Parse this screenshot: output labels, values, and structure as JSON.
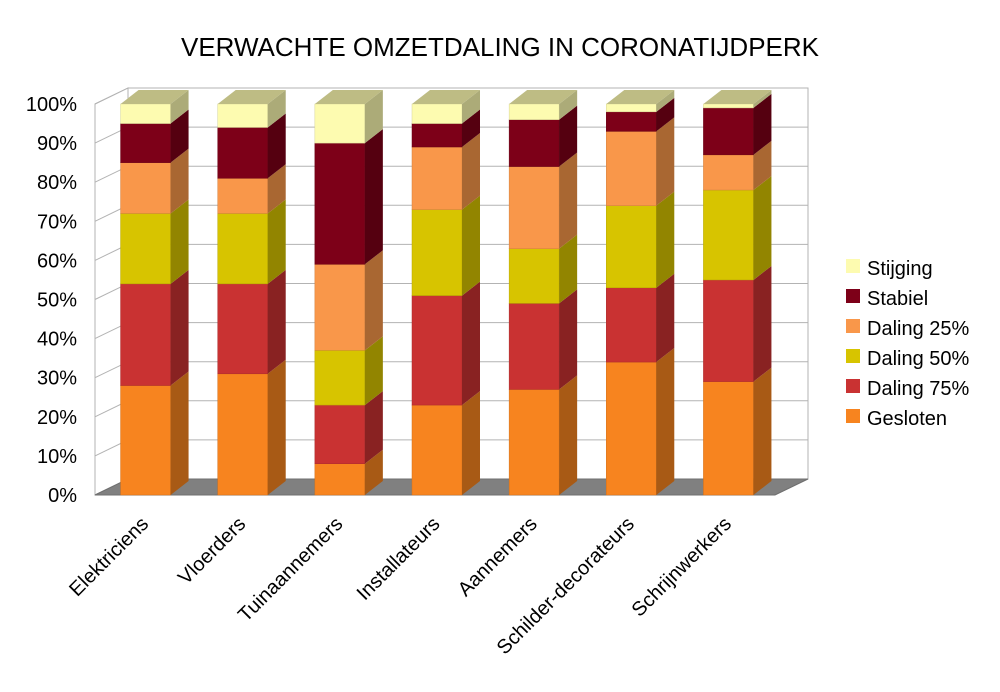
{
  "chart_data": {
    "type": "bar",
    "stacked": true,
    "normalized_percent": true,
    "three_d": true,
    "title": "VERWACHTE OMZETDALING IN CORONATIJDPERK",
    "xlabel": "",
    "ylabel": "",
    "ylim": [
      0,
      100
    ],
    "y_ticks": [
      "0%",
      "10%",
      "20%",
      "30%",
      "40%",
      "50%",
      "60%",
      "70%",
      "80%",
      "90%",
      "100%"
    ],
    "grid": true,
    "legend_position": "right",
    "categories": [
      "Elektriciens",
      "Vloerders",
      "Tuinaannemers",
      "Installateurs",
      "Aannemers",
      "Schilder-decorateurs",
      "Schrijnwerkers"
    ],
    "series": [
      {
        "name": "Gesloten",
        "color": "#f7841f",
        "values": [
          28,
          31,
          8,
          23,
          27,
          34,
          29
        ]
      },
      {
        "name": "Daling 75%",
        "color": "#c93232",
        "values": [
          26,
          23,
          15,
          28,
          22,
          19,
          26
        ]
      },
      {
        "name": "Daling 50%",
        "color": "#d7c400",
        "values": [
          18,
          18,
          14,
          22,
          14,
          21,
          23
        ]
      },
      {
        "name": "Daling 25%",
        "color": "#f9974a",
        "values": [
          13,
          9,
          22,
          16,
          21,
          19,
          9
        ]
      },
      {
        "name": "Stabiel",
        "color": "#7d0018",
        "values": [
          10,
          13,
          31,
          6,
          12,
          5,
          12
        ]
      },
      {
        "name": "Stijging",
        "color": "#fdfbb0",
        "values": [
          5,
          6,
          10,
          5,
          4,
          2,
          1
        ]
      }
    ]
  }
}
